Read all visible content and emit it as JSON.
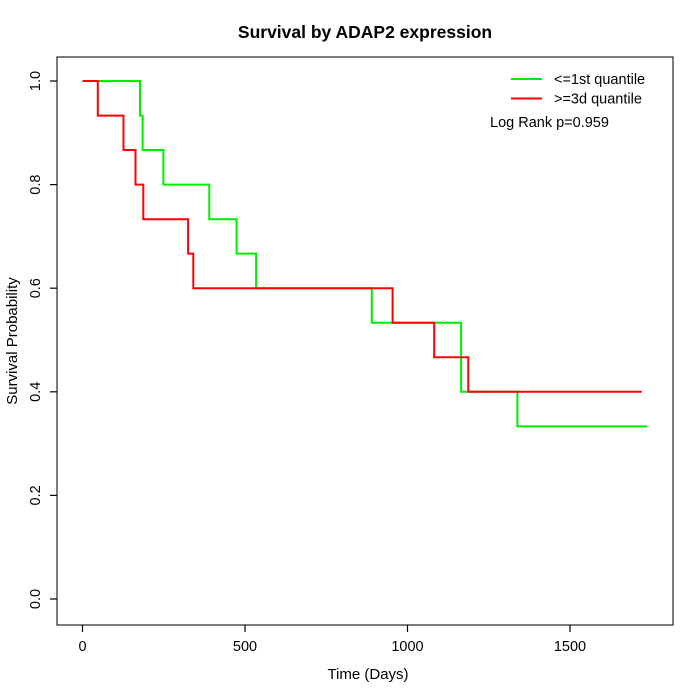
{
  "chart_data": {
    "type": "line",
    "subtype": "kaplan-meier-step",
    "title": "Survival by ADAP2 expression",
    "xlabel": "Time (Days)",
    "ylabel": "Survival Probability",
    "xlim": [
      0,
      1800
    ],
    "ylim": [
      0,
      1
    ],
    "x_ticks": [
      0,
      500,
      1000,
      1500
    ],
    "y_ticks": [
      "0.0",
      "0.2",
      "0.4",
      "0.6",
      "0.8",
      "1.0"
    ],
    "grid": false,
    "legend_position": "top-right",
    "annotation": "Log Rank p=0.959",
    "axis_color": "#000000",
    "background_color": "#ffffff",
    "series": [
      {
        "name": "<=1st quantile",
        "color": "#00ee00",
        "steps": [
          [
            0,
            1.0
          ],
          [
            177,
            0.9333
          ],
          [
            185,
            0.8667
          ],
          [
            249,
            0.8
          ],
          [
            390,
            0.7333
          ],
          [
            474,
            0.6667
          ],
          [
            534,
            0.6
          ],
          [
            890,
            0.5333
          ],
          [
            1165,
            0.4
          ],
          [
            1338,
            0.3333
          ]
        ],
        "end_time": 1738
      },
      {
        "name": ">=3d quantile",
        "color": "#ff0000",
        "steps": [
          [
            0,
            1.0
          ],
          [
            47,
            0.9333
          ],
          [
            126,
            0.8667
          ],
          [
            163,
            0.8
          ],
          [
            187,
            0.7333
          ],
          [
            325,
            0.6667
          ],
          [
            341,
            0.6
          ],
          [
            954,
            0.5333
          ],
          [
            1082,
            0.4667
          ],
          [
            1187,
            0.4
          ]
        ],
        "end_time": 1721
      }
    ]
  }
}
